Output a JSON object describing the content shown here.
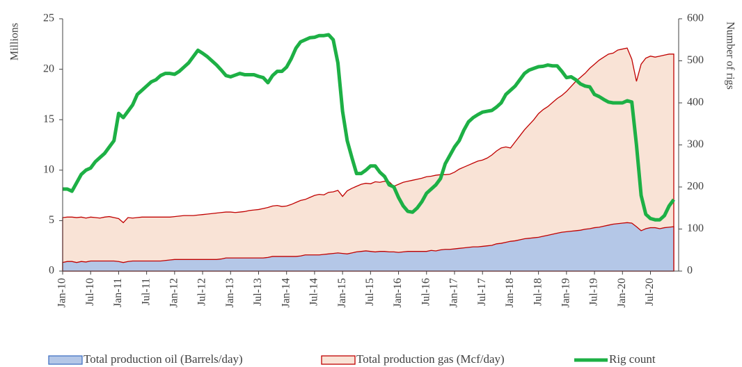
{
  "chart_data": {
    "type": "area-line",
    "categories": [
      "Jan-10",
      null,
      null,
      null,
      null,
      null,
      "Jul-10",
      null,
      null,
      null,
      null,
      null,
      "Jan-11",
      null,
      null,
      null,
      null,
      null,
      "Jul-11",
      null,
      null,
      null,
      null,
      null,
      "Jan-12",
      null,
      null,
      null,
      null,
      null,
      "Jul-12",
      null,
      null,
      null,
      null,
      null,
      "Jan-13",
      null,
      null,
      null,
      null,
      null,
      "Jul-13",
      null,
      null,
      null,
      null,
      null,
      "Jan-14",
      null,
      null,
      null,
      null,
      null,
      "Jul-14",
      null,
      null,
      null,
      null,
      null,
      "Jan-15",
      null,
      null,
      null,
      null,
      null,
      "Jul-15",
      null,
      null,
      null,
      null,
      null,
      "Jan-16",
      null,
      null,
      null,
      null,
      null,
      "Jul-16",
      null,
      null,
      null,
      null,
      null,
      "Jan-17",
      null,
      null,
      null,
      null,
      null,
      "Jul-17",
      null,
      null,
      null,
      null,
      null,
      "Jan-18",
      null,
      null,
      null,
      null,
      null,
      "Jul-18",
      null,
      null,
      null,
      null,
      null,
      "Jan-19",
      null,
      null,
      null,
      null,
      null,
      "Jul-19",
      null,
      null,
      null,
      null,
      null,
      "Jan-20",
      null,
      null,
      null,
      null,
      null,
      "Jul-20",
      null,
      null,
      null,
      null,
      null
    ],
    "y_label": "Millions",
    "y2_label": "Number of rigs",
    "ylim": [
      0,
      25
    ],
    "yticks": [
      0,
      5,
      10,
      15,
      20,
      25
    ],
    "y2lim": [
      0,
      600
    ],
    "y2ticks": [
      0,
      100,
      200,
      300,
      400,
      500,
      600
    ],
    "series": [
      {
        "name": "Total production gas (Mcf/day)",
        "kind": "area",
        "color": "#f9e3d6",
        "stroke": "#c00000",
        "values": [
          5.3,
          5.35,
          5.35,
          5.3,
          5.35,
          5.25,
          5.35,
          5.3,
          5.25,
          5.35,
          5.4,
          5.3,
          5.2,
          4.8,
          5.3,
          5.25,
          5.3,
          5.35,
          5.35,
          5.35,
          5.35,
          5.35,
          5.35,
          5.35,
          5.4,
          5.45,
          5.5,
          5.5,
          5.5,
          5.55,
          5.6,
          5.65,
          5.7,
          5.75,
          5.8,
          5.85,
          5.85,
          5.8,
          5.85,
          5.9,
          6.0,
          6.05,
          6.1,
          6.2,
          6.3,
          6.45,
          6.5,
          6.4,
          6.45,
          6.6,
          6.8,
          7.0,
          7.1,
          7.3,
          7.5,
          7.6,
          7.55,
          7.8,
          7.85,
          8.0,
          7.4,
          7.95,
          8.2,
          8.4,
          8.6,
          8.7,
          8.65,
          8.85,
          8.8,
          8.9,
          8.85,
          8.4,
          8.6,
          8.8,
          8.9,
          9.0,
          9.1,
          9.2,
          9.35,
          9.4,
          9.5,
          9.55,
          9.55,
          9.6,
          9.8,
          10.1,
          10.3,
          10.5,
          10.7,
          10.9,
          11.0,
          11.2,
          11.5,
          11.9,
          12.2,
          12.3,
          12.2,
          12.8,
          13.4,
          14.0,
          14.5,
          15.0,
          15.6,
          16.0,
          16.3,
          16.7,
          17.1,
          17.4,
          17.8,
          18.3,
          18.8,
          19.2,
          19.6,
          20.1,
          20.5,
          20.9,
          21.2,
          21.5,
          21.6,
          21.9,
          22.0,
          22.1,
          21.0,
          18.8,
          20.5,
          21.1,
          21.3,
          21.2,
          21.3,
          21.4,
          21.5,
          21.5
        ]
      },
      {
        "name": "Total production oil (Barrels/day)",
        "kind": "area",
        "color": "#b4c7e7",
        "stroke": "#c00000",
        "values": [
          0.85,
          0.95,
          0.95,
          0.85,
          0.95,
          0.9,
          1.0,
          1.0,
          1.0,
          1.0,
          1.0,
          1.0,
          0.95,
          0.85,
          0.95,
          1.0,
          1.0,
          1.0,
          1.0,
          1.0,
          1.0,
          1.0,
          1.05,
          1.1,
          1.15,
          1.15,
          1.15,
          1.15,
          1.15,
          1.15,
          1.15,
          1.15,
          1.15,
          1.15,
          1.2,
          1.3,
          1.3,
          1.3,
          1.3,
          1.3,
          1.3,
          1.3,
          1.3,
          1.3,
          1.35,
          1.45,
          1.45,
          1.45,
          1.45,
          1.45,
          1.45,
          1.5,
          1.6,
          1.6,
          1.6,
          1.6,
          1.65,
          1.7,
          1.75,
          1.8,
          1.75,
          1.7,
          1.8,
          1.9,
          1.95,
          2.0,
          1.95,
          1.9,
          1.95,
          1.95,
          1.9,
          1.9,
          1.85,
          1.9,
          1.95,
          1.95,
          1.95,
          1.95,
          1.95,
          2.05,
          2.0,
          2.1,
          2.15,
          2.15,
          2.2,
          2.25,
          2.3,
          2.35,
          2.4,
          2.4,
          2.45,
          2.5,
          2.55,
          2.7,
          2.75,
          2.85,
          2.95,
          3.0,
          3.1,
          3.2,
          3.25,
          3.3,
          3.35,
          3.45,
          3.55,
          3.65,
          3.75,
          3.85,
          3.9,
          3.95,
          4.0,
          4.05,
          4.15,
          4.2,
          4.3,
          4.35,
          4.45,
          4.55,
          4.65,
          4.7,
          4.75,
          4.8,
          4.75,
          4.4,
          4.0,
          4.2,
          4.3,
          4.3,
          4.2,
          4.3,
          4.35,
          4.4
        ]
      },
      {
        "name": "Rig count",
        "kind": "line",
        "axis": "y2",
        "color": "#1db045",
        "values": [
          195,
          195,
          190,
          210,
          230,
          240,
          245,
          260,
          270,
          280,
          295,
          310,
          375,
          365,
          380,
          395,
          420,
          430,
          440,
          450,
          455,
          465,
          470,
          470,
          468,
          475,
          485,
          495,
          510,
          525,
          518,
          510,
          500,
          490,
          478,
          465,
          462,
          466,
          470,
          467,
          467,
          467,
          463,
          460,
          448,
          465,
          475,
          475,
          485,
          505,
          530,
          545,
          550,
          555,
          556,
          560,
          560,
          562,
          550,
          495,
          380,
          310,
          270,
          232,
          232,
          240,
          250,
          250,
          235,
          225,
          205,
          200,
          175,
          155,
          142,
          140,
          150,
          165,
          185,
          195,
          205,
          220,
          255,
          275,
          295,
          310,
          335,
          355,
          365,
          372,
          378,
          380,
          382,
          390,
          400,
          420,
          430,
          440,
          455,
          470,
          478,
          482,
          486,
          487,
          490,
          488,
          488,
          475,
          460,
          462,
          455,
          445,
          440,
          438,
          420,
          415,
          408,
          402,
          400,
          400,
          400,
          405,
          402,
          300,
          180,
          135,
          125,
          122,
          122,
          132,
          155,
          170
        ]
      }
    ],
    "legend_order": [
      1,
      0,
      2
    ]
  }
}
